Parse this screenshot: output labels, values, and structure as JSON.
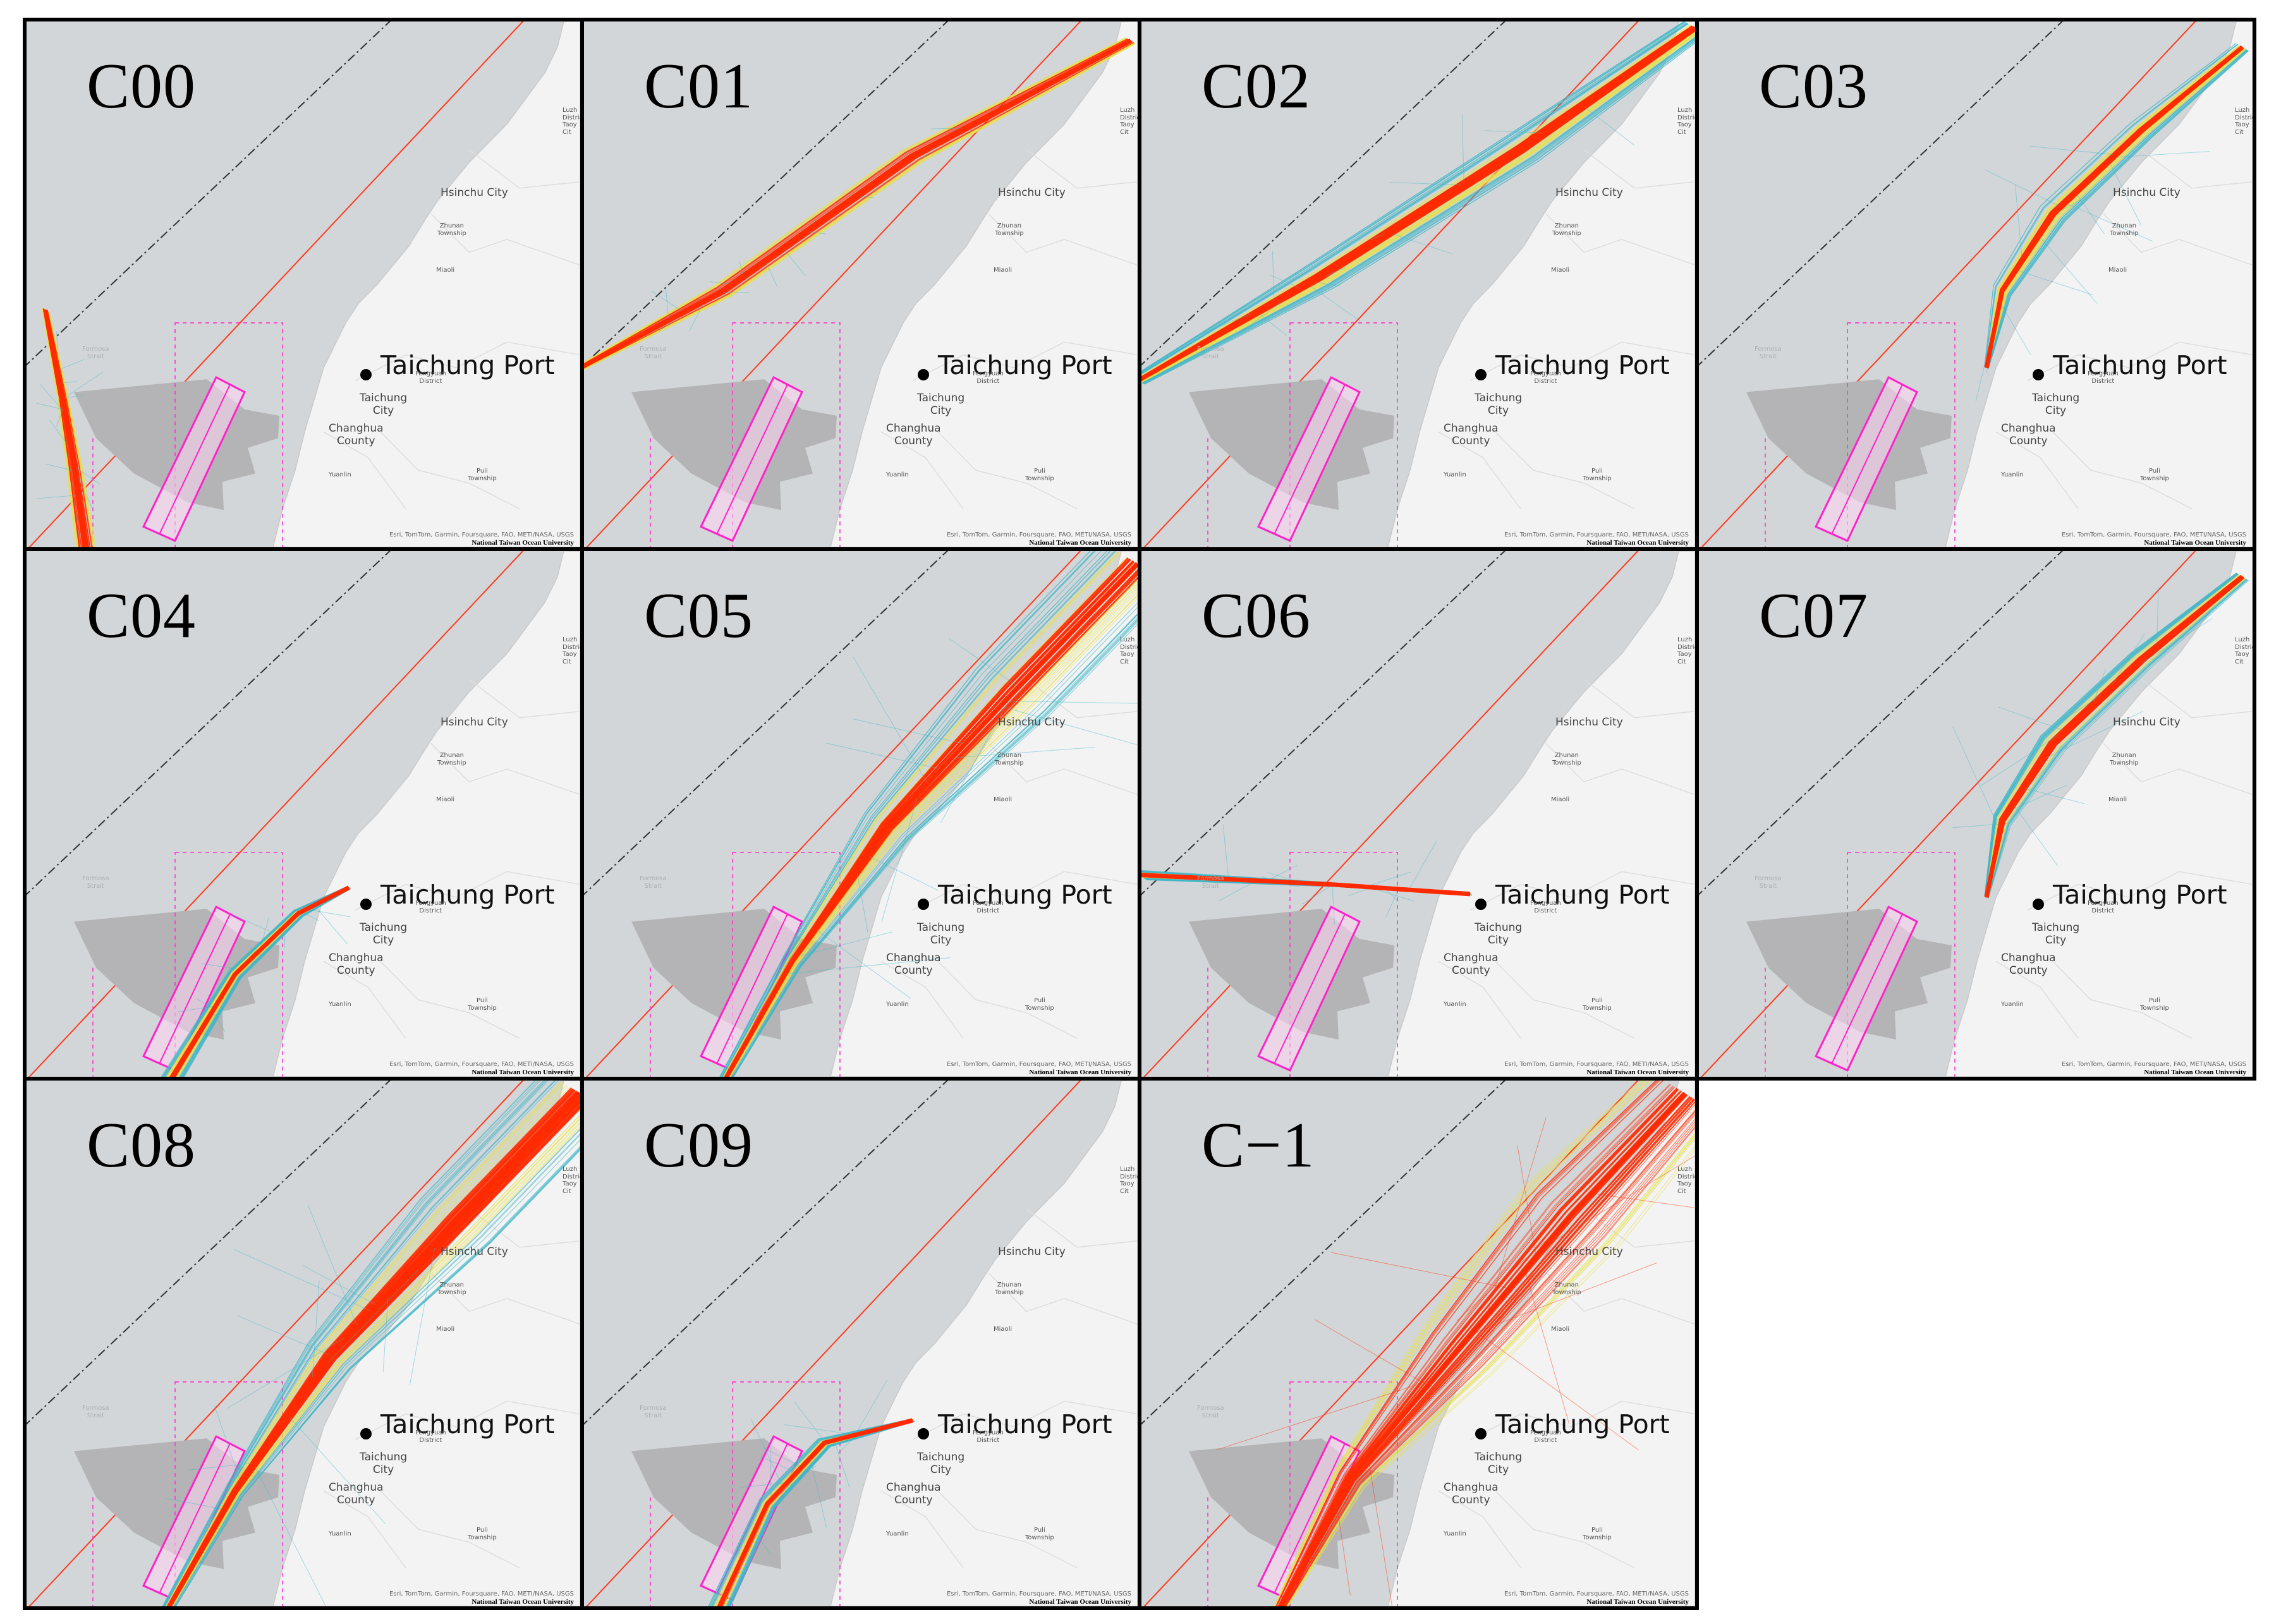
{
  "panels": [
    {
      "id": "C00",
      "route": "sw"
    },
    {
      "id": "C01",
      "route": "north_offshore"
    },
    {
      "id": "C02",
      "route": "north_wide"
    },
    {
      "id": "C03",
      "route": "port_north_coastal"
    },
    {
      "id": "C04",
      "route": "port_southwest"
    },
    {
      "id": "C05",
      "route": "south_to_north"
    },
    {
      "id": "C06",
      "route": "port_west"
    },
    {
      "id": "C07",
      "route": "port_north_coastal"
    },
    {
      "id": "C08",
      "route": "south_to_north"
    },
    {
      "id": "C09",
      "route": "port_southwest_wide"
    },
    {
      "id": "C−1",
      "route": "mixed"
    }
  ],
  "map": {
    "port_name": "Taichung Port",
    "place_labels": {
      "hsinchu": "Hsinchu City",
      "zhunan": "Zhunan\nTownship",
      "miaoli": "Miaoli",
      "fengyuan": "Fengyuan\nDistrict",
      "taichung": "Taichung\nCity",
      "changhua": "Changhua\nCounty",
      "yuanlin": "Yuanlin",
      "puli": "Puli\nTownship",
      "taoyuan": "Luzh\nDistrict\nTaoy\nCit",
      "strait": "Formosa\nStrait"
    },
    "credit": "Esri, TomTom, Garmin, Foursquare, FAO, METI/NASA, USGS",
    "institution": "National Taiwan Ocean University"
  },
  "colors": {
    "sea": "#d3d6d8",
    "land": "#f3f3f3",
    "wind_farm": "#b4b4b6",
    "zone_outline": "#ff33cc",
    "boundary_line": "#ff3b1f",
    "median_line": "#333333",
    "track_low": "#3fb7c9",
    "track_mid": "#e8e04a",
    "track_high": "#ff2a00"
  }
}
